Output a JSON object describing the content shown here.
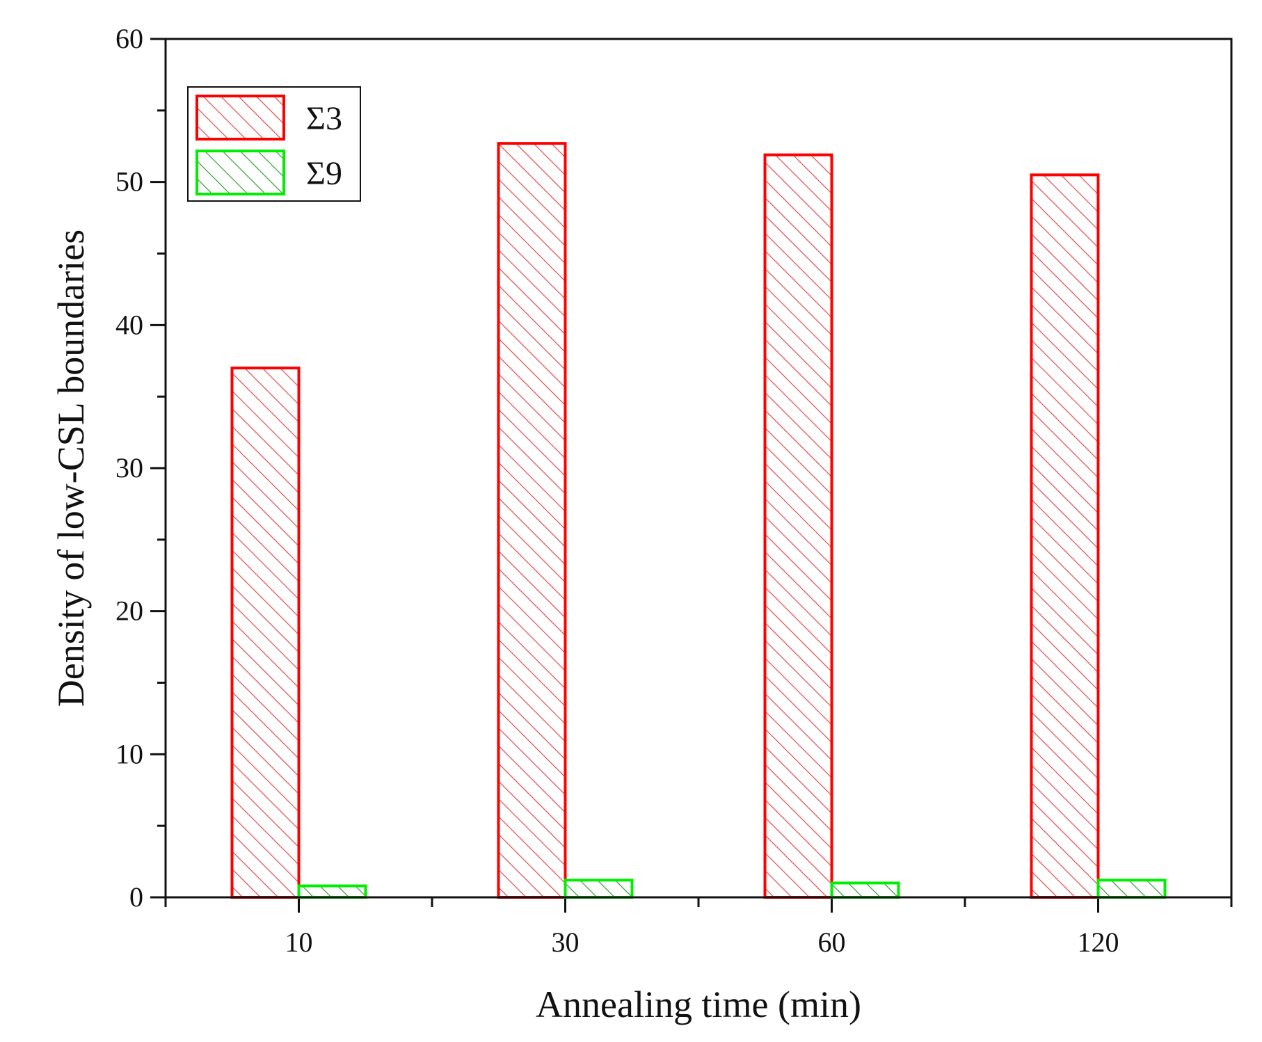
{
  "chart_data": {
    "type": "bar",
    "title": "",
    "xlabel": "Annealing time (min)",
    "ylabel": "Density of low-CSL boundaries",
    "categories": [
      "10",
      "30",
      "60",
      "120"
    ],
    "series": [
      {
        "name": "Σ3",
        "values": [
          37.0,
          52.7,
          51.9,
          50.5
        ],
        "color": "#ff0000",
        "hatch": "diagonal"
      },
      {
        "name": "Σ9",
        "values": [
          0.8,
          1.2,
          1.0,
          1.2
        ],
        "color": "#00ee00",
        "hatch": "diagonal"
      }
    ],
    "ylim": [
      0,
      60
    ],
    "yticks": [
      0,
      10,
      20,
      30,
      40,
      50,
      60
    ],
    "grid": false,
    "legend_position": "top-left"
  }
}
